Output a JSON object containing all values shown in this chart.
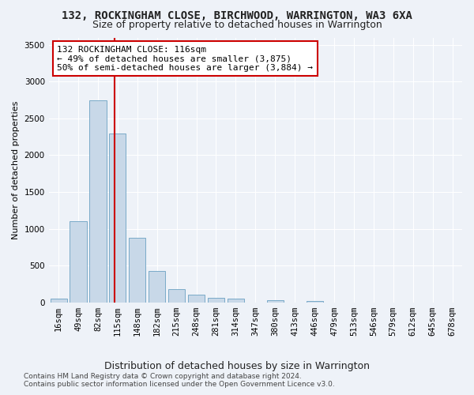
{
  "title1": "132, ROCKINGHAM CLOSE, BIRCHWOOD, WARRINGTON, WA3 6XA",
  "title2": "Size of property relative to detached houses in Warrington",
  "xlabel": "Distribution of detached houses by size in Warrington",
  "ylabel": "Number of detached properties",
  "categories": [
    "16sqm",
    "49sqm",
    "82sqm",
    "115sqm",
    "148sqm",
    "182sqm",
    "215sqm",
    "248sqm",
    "281sqm",
    "314sqm",
    "347sqm",
    "380sqm",
    "413sqm",
    "446sqm",
    "479sqm",
    "513sqm",
    "546sqm",
    "579sqm",
    "612sqm",
    "645sqm",
    "678sqm"
  ],
  "values": [
    55,
    1100,
    2750,
    2300,
    880,
    430,
    175,
    105,
    65,
    45,
    0,
    30,
    0,
    20,
    0,
    0,
    0,
    0,
    0,
    0,
    0
  ],
  "bar_color": "#c8d8e8",
  "bar_edge_color": "#7aaac8",
  "vline_color": "#cc0000",
  "annotation_text": "132 ROCKINGHAM CLOSE: 116sqm\n← 49% of detached houses are smaller (3,875)\n50% of semi-detached houses are larger (3,884) →",
  "annotation_box_color": "#ffffff",
  "annotation_box_edge_color": "#cc0000",
  "ylim": [
    0,
    3600
  ],
  "yticks": [
    0,
    500,
    1000,
    1500,
    2000,
    2500,
    3000,
    3500
  ],
  "footer1": "Contains HM Land Registry data © Crown copyright and database right 2024.",
  "footer2": "Contains public sector information licensed under the Open Government Licence v3.0.",
  "bg_color": "#eef2f8",
  "plot_bg_color": "#eef2f8",
  "grid_color": "#ffffff",
  "title1_fontsize": 10,
  "title2_fontsize": 9,
  "xlabel_fontsize": 9,
  "ylabel_fontsize": 8,
  "tick_fontsize": 7.5,
  "annotation_fontsize": 8,
  "footer_fontsize": 6.5
}
